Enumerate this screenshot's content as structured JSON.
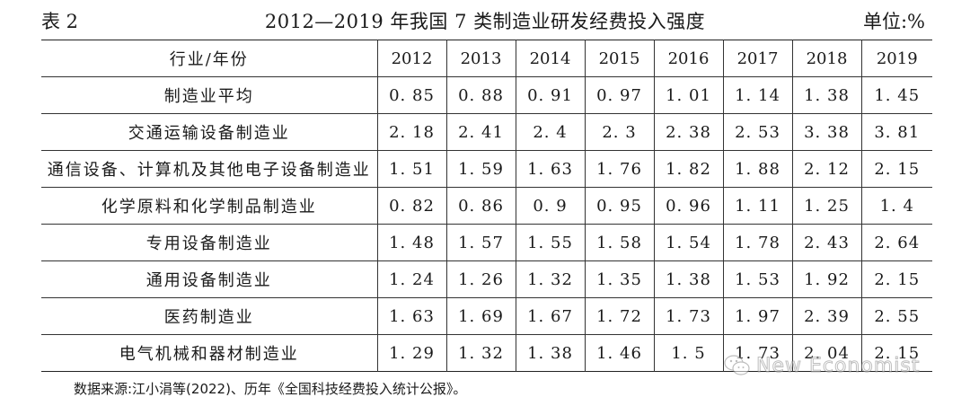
{
  "header": {
    "table_label": "表 2",
    "title": "2012—2019 年我国 7 类制造业研发经费投入强度",
    "unit": "单位:%"
  },
  "table": {
    "columns": [
      "行业/年份",
      "2012",
      "2013",
      "2014",
      "2015",
      "2016",
      "2017",
      "2018",
      "2019"
    ],
    "rows": [
      {
        "industry": "制造业平均",
        "values": [
          "0. 85",
          "0. 88",
          "0. 91",
          "0. 97",
          "1. 01",
          "1. 14",
          "1. 38",
          "1. 45"
        ]
      },
      {
        "industry": "交通运输设备制造业",
        "values": [
          "2. 18",
          "2. 41",
          "2. 4",
          "2. 3",
          "2. 38",
          "2. 53",
          "3. 38",
          "3. 81"
        ]
      },
      {
        "industry": "通信设备、计算机及其他电子设备制造业",
        "values": [
          "1. 51",
          "1. 59",
          "1. 63",
          "1. 76",
          "1. 82",
          "1. 88",
          "2. 12",
          "2. 15"
        ]
      },
      {
        "industry": "化学原料和化学制品制造业",
        "values": [
          "0. 82",
          "0. 86",
          "0. 9",
          "0. 95",
          "0. 96",
          "1. 11",
          "1. 25",
          "1. 4"
        ]
      },
      {
        "industry": "专用设备制造业",
        "values": [
          "1. 48",
          "1. 57",
          "1. 55",
          "1. 58",
          "1. 54",
          "1. 78",
          "2. 43",
          "2. 64"
        ]
      },
      {
        "industry": "通用设备制造业",
        "values": [
          "1. 24",
          "1. 26",
          "1. 32",
          "1. 35",
          "1. 38",
          "1. 53",
          "1. 92",
          "2. 15"
        ]
      },
      {
        "industry": "医药制造业",
        "values": [
          "1. 63",
          "1. 69",
          "1. 67",
          "1. 72",
          "1. 73",
          "1. 97",
          "2. 39",
          "2. 55"
        ]
      },
      {
        "industry": "电气机械和器材制造业",
        "values": [
          "1. 29",
          "1. 32",
          "1. 38",
          "1. 46",
          "1. 5",
          "1. 73",
          "2. 04",
          "2. 15"
        ]
      }
    ]
  },
  "source": "数据来源:江小涓等(2022)、历年《全国科技经费投入统计公报》。",
  "watermark": {
    "text": "New Economist",
    "icon": "wechat-icon"
  }
}
